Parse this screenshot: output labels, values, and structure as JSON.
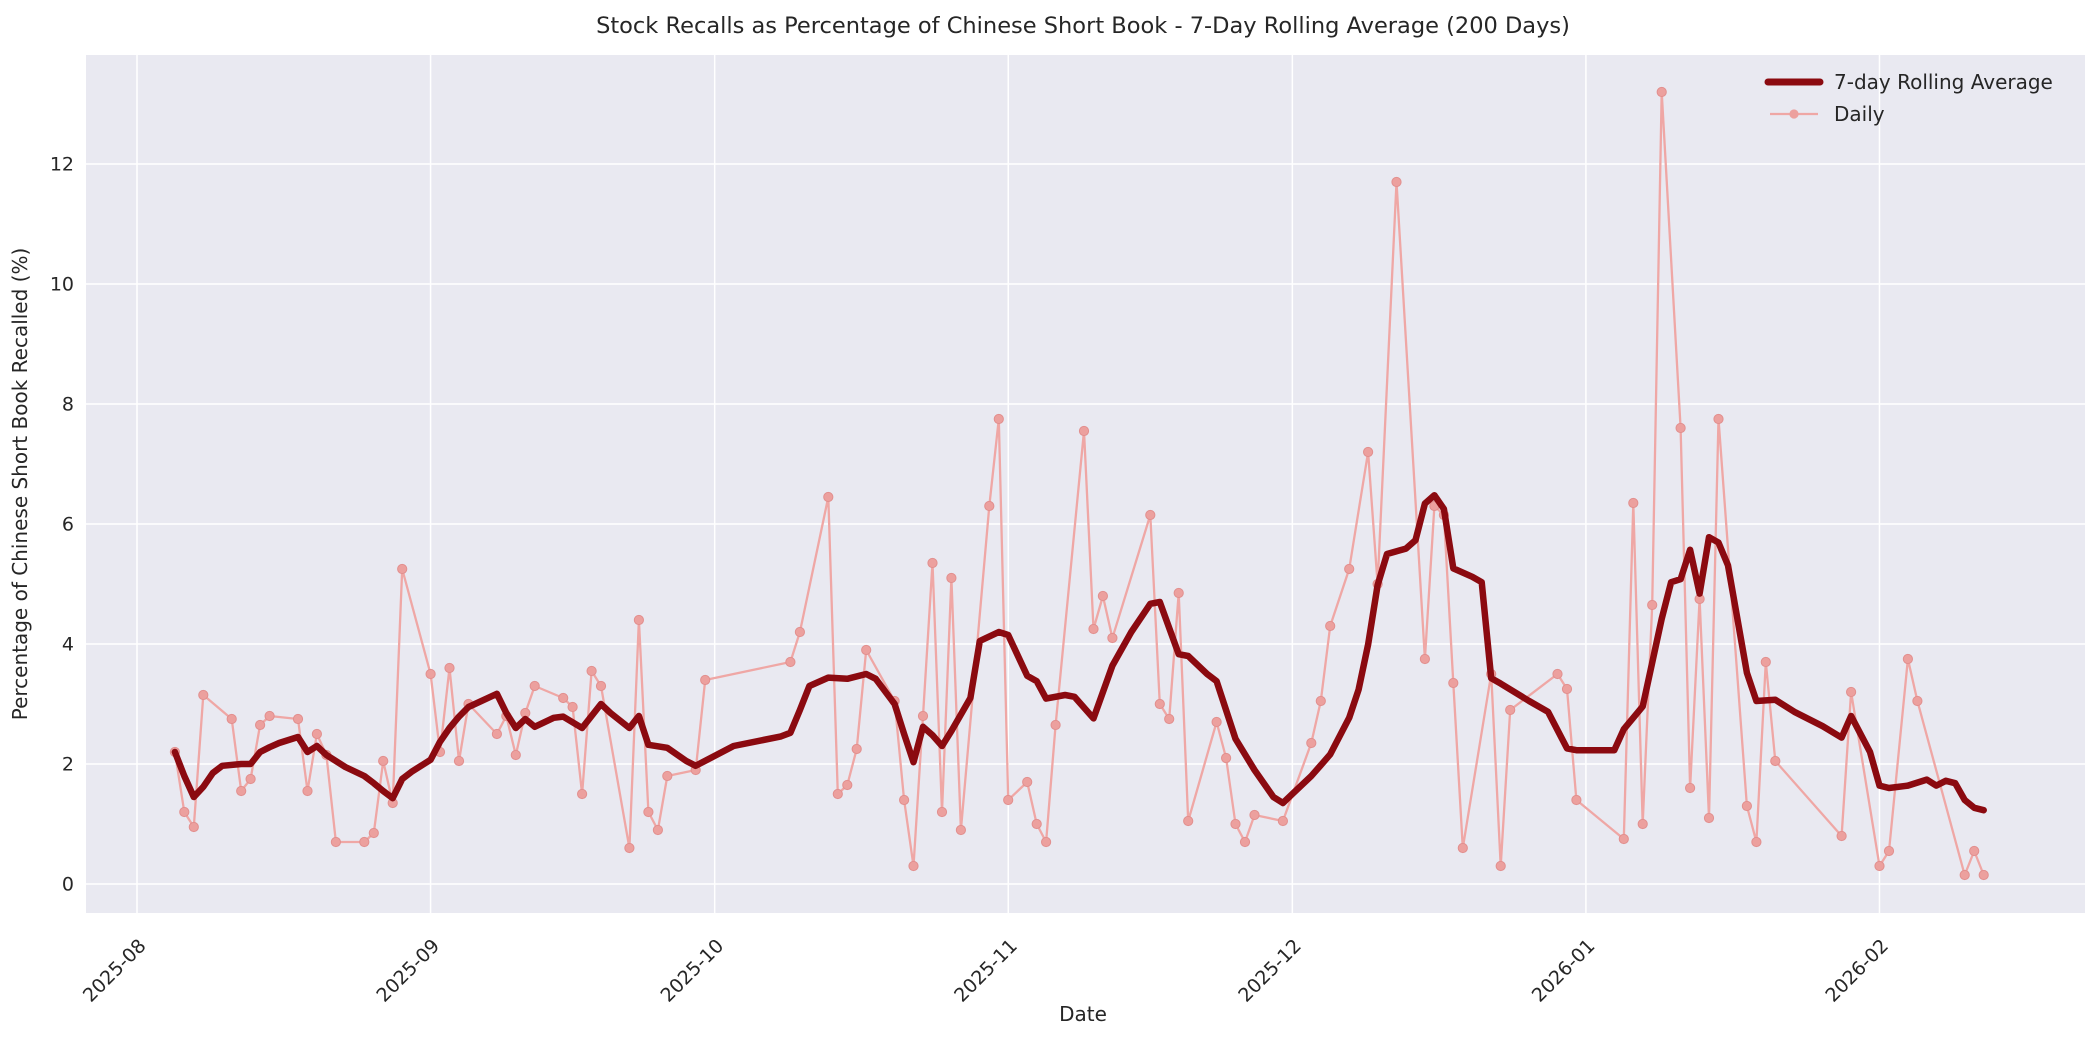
{
  "title": "Stock Recalls as Percentage of Chinese Short Book - 7-Day Rolling Average (200 Days)",
  "axes": {
    "xlabel": "Date",
    "ylabel": "Percentage of Chinese Short Book Recalled (%)"
  },
  "legend": {
    "position": "upper right",
    "items": [
      {
        "label": "7-day Rolling Average",
        "swatch": "thick-line"
      },
      {
        "label": "Daily",
        "swatch": "thin-line-with-marker"
      }
    ]
  },
  "colors": {
    "rolling": "#8b0a10",
    "daily": "#efa7a5",
    "daily_marker": "#eca09e",
    "daily_marker_edge": "#e28f8e",
    "plot_bg": "#e9e9f1",
    "grid": "#ffffff",
    "fig_bg": "#ffffff",
    "text": "#262626"
  },
  "chart_data": {
    "type": "line",
    "title": "Stock Recalls as Percentage of Chinese Short Book - 7-Day Rolling Average (200 Days)",
    "xlabel": "Date",
    "ylabel": "Percentage of Chinese Short Book Recalled (%)",
    "grid": true,
    "legend_position": "upper right",
    "ylim": [
      -0.73,
      13.98
    ],
    "xlim": [
      "2025-07-26",
      "2026-02-23"
    ],
    "y_ticks": [
      0,
      2,
      4,
      6,
      8,
      10,
      12
    ],
    "x_ticks": [
      {
        "label": "2025-08",
        "date": "2025-08-01"
      },
      {
        "label": "2025-09",
        "date": "2025-09-01"
      },
      {
        "label": "2025-10",
        "date": "2025-10-01"
      },
      {
        "label": "2025-11",
        "date": "2025-11-01"
      },
      {
        "label": "2025-12",
        "date": "2025-12-01"
      },
      {
        "label": "2026-01",
        "date": "2026-01-01"
      },
      {
        "label": "2026-02",
        "date": "2026-02-01"
      }
    ],
    "series": [
      {
        "name": "Daily",
        "style": "thin",
        "markers": true,
        "points": [
          [
            "2025-08-05",
            2.2
          ],
          [
            "2025-08-06",
            1.2
          ],
          [
            "2025-08-07",
            0.95
          ],
          [
            "2025-08-08",
            3.15
          ],
          [
            "2025-08-11",
            2.75
          ],
          [
            "2025-08-12",
            1.55
          ],
          [
            "2025-08-13",
            1.75
          ],
          [
            "2025-08-14",
            2.65
          ],
          [
            "2025-08-15",
            2.8
          ],
          [
            "2025-08-18",
            2.75
          ],
          [
            "2025-08-19",
            1.55
          ],
          [
            "2025-08-20",
            2.5
          ],
          [
            "2025-08-21",
            2.15
          ],
          [
            "2025-08-22",
            0.7
          ],
          [
            "2025-08-25",
            0.7
          ],
          [
            "2025-08-26",
            0.85
          ],
          [
            "2025-08-27",
            2.05
          ],
          [
            "2025-08-28",
            1.35
          ],
          [
            "2025-08-29",
            5.25
          ],
          [
            "2025-09-01",
            3.5
          ],
          [
            "2025-09-02",
            2.2
          ],
          [
            "2025-09-03",
            3.6
          ],
          [
            "2025-09-04",
            2.05
          ],
          [
            "2025-09-05",
            3.0
          ],
          [
            "2025-09-08",
            2.5
          ],
          [
            "2025-09-09",
            2.8
          ],
          [
            "2025-09-10",
            2.15
          ],
          [
            "2025-09-11",
            2.85
          ],
          [
            "2025-09-12",
            3.3
          ],
          [
            "2025-09-15",
            3.1
          ],
          [
            "2025-09-16",
            2.95
          ],
          [
            "2025-09-17",
            1.5
          ],
          [
            "2025-09-18",
            3.55
          ],
          [
            "2025-09-19",
            3.3
          ],
          [
            "2025-09-22",
            0.6
          ],
          [
            "2025-09-23",
            4.4
          ],
          [
            "2025-09-24",
            1.2
          ],
          [
            "2025-09-25",
            0.9
          ],
          [
            "2025-09-26",
            1.8
          ],
          [
            "2025-09-29",
            1.9
          ],
          [
            "2025-09-30",
            3.4
          ],
          [
            "2025-10-09",
            3.7
          ],
          [
            "2025-10-10",
            4.2
          ],
          [
            "2025-10-13",
            6.45
          ],
          [
            "2025-10-14",
            1.5
          ],
          [
            "2025-10-15",
            1.65
          ],
          [
            "2025-10-16",
            2.25
          ],
          [
            "2025-10-17",
            3.9
          ],
          [
            "2025-10-20",
            3.05
          ],
          [
            "2025-10-21",
            1.4
          ],
          [
            "2025-10-22",
            0.3
          ],
          [
            "2025-10-23",
            2.8
          ],
          [
            "2025-10-24",
            5.35
          ],
          [
            "2025-10-25",
            1.2
          ],
          [
            "2025-10-26",
            5.1
          ],
          [
            "2025-10-27",
            0.9
          ],
          [
            "2025-10-30",
            6.3
          ],
          [
            "2025-10-31",
            7.75
          ],
          [
            "2025-11-01",
            1.4
          ],
          [
            "2025-11-03",
            1.7
          ],
          [
            "2025-11-04",
            1.0
          ],
          [
            "2025-11-05",
            0.7
          ],
          [
            "2025-11-06",
            2.65
          ],
          [
            "2025-11-09",
            7.55
          ],
          [
            "2025-11-10",
            4.25
          ],
          [
            "2025-11-11",
            4.8
          ],
          [
            "2025-11-12",
            4.1
          ],
          [
            "2025-11-16",
            6.15
          ],
          [
            "2025-11-17",
            3.0
          ],
          [
            "2025-11-18",
            2.75
          ],
          [
            "2025-11-19",
            4.85
          ],
          [
            "2025-11-20",
            1.05
          ],
          [
            "2025-11-23",
            2.7
          ],
          [
            "2025-11-24",
            2.1
          ],
          [
            "2025-11-25",
            1.0
          ],
          [
            "2025-11-26",
            0.7
          ],
          [
            "2025-11-27",
            1.15
          ],
          [
            "2025-11-30",
            1.05
          ],
          [
            "2025-12-03",
            2.35
          ],
          [
            "2025-12-04",
            3.05
          ],
          [
            "2025-12-05",
            4.3
          ],
          [
            "2025-12-07",
            5.25
          ],
          [
            "2025-12-09",
            7.2
          ],
          [
            "2025-12-10",
            5.0
          ],
          [
            "2025-12-12",
            11.7
          ],
          [
            "2025-12-15",
            3.75
          ],
          [
            "2025-12-16",
            6.3
          ],
          [
            "2025-12-17",
            6.15
          ],
          [
            "2025-12-18",
            3.35
          ],
          [
            "2025-12-19",
            0.6
          ],
          [
            "2025-12-22",
            3.5
          ],
          [
            "2025-12-23",
            0.3
          ],
          [
            "2025-12-24",
            2.9
          ],
          [
            "2025-12-29",
            3.5
          ],
          [
            "2025-12-30",
            3.25
          ],
          [
            "2025-12-31",
            1.4
          ],
          [
            "2026-01-05",
            0.75
          ],
          [
            "2026-01-06",
            6.35
          ],
          [
            "2026-01-07",
            1.0
          ],
          [
            "2026-01-08",
            4.65
          ],
          [
            "2026-01-09",
            13.2
          ],
          [
            "2026-01-11",
            7.6
          ],
          [
            "2026-01-12",
            1.6
          ],
          [
            "2026-01-13",
            4.75
          ],
          [
            "2026-01-14",
            1.1
          ],
          [
            "2026-01-15",
            7.75
          ],
          [
            "2026-01-18",
            1.3
          ],
          [
            "2026-01-19",
            0.7
          ],
          [
            "2026-01-20",
            3.7
          ],
          [
            "2026-01-21",
            2.05
          ],
          [
            "2026-01-28",
            0.8
          ],
          [
            "2026-01-29",
            3.2
          ],
          [
            "2026-02-01",
            0.3
          ],
          [
            "2026-02-02",
            0.55
          ],
          [
            "2026-02-04",
            3.75
          ],
          [
            "2026-02-05",
            3.05
          ],
          [
            "2026-02-10",
            0.15
          ],
          [
            "2026-02-11",
            0.55
          ],
          [
            "2026-02-12",
            0.15
          ]
        ]
      },
      {
        "name": "7-day Rolling Average",
        "style": "thick",
        "markers": false,
        "points": [
          [
            "2025-08-05",
            2.2
          ],
          [
            "2025-08-06",
            1.8
          ],
          [
            "2025-08-07",
            1.45
          ],
          [
            "2025-08-08",
            1.62
          ],
          [
            "2025-08-09",
            1.85
          ],
          [
            "2025-08-10",
            1.97
          ],
          [
            "2025-08-12",
            2.0
          ],
          [
            "2025-08-13",
            2.0
          ],
          [
            "2025-08-14",
            2.2
          ],
          [
            "2025-08-15",
            2.28
          ],
          [
            "2025-08-16",
            2.35
          ],
          [
            "2025-08-18",
            2.45
          ],
          [
            "2025-08-19",
            2.2
          ],
          [
            "2025-08-20",
            2.3
          ],
          [
            "2025-08-21",
            2.15
          ],
          [
            "2025-08-23",
            1.95
          ],
          [
            "2025-08-25",
            1.8
          ],
          [
            "2025-08-26",
            1.68
          ],
          [
            "2025-08-27",
            1.55
          ],
          [
            "2025-08-28",
            1.43
          ],
          [
            "2025-08-29",
            1.75
          ],
          [
            "2025-08-30",
            1.87
          ],
          [
            "2025-08-31",
            1.97
          ],
          [
            "2025-09-01",
            2.07
          ],
          [
            "2025-09-02",
            2.37
          ],
          [
            "2025-09-03",
            2.6
          ],
          [
            "2025-09-04",
            2.79
          ],
          [
            "2025-09-05",
            2.95
          ],
          [
            "2025-09-08",
            3.17
          ],
          [
            "2025-09-09",
            2.85
          ],
          [
            "2025-09-10",
            2.6
          ],
          [
            "2025-09-11",
            2.75
          ],
          [
            "2025-09-12",
            2.62
          ],
          [
            "2025-09-14",
            2.77
          ],
          [
            "2025-09-15",
            2.79
          ],
          [
            "2025-09-17",
            2.6
          ],
          [
            "2025-09-19",
            3.0
          ],
          [
            "2025-09-20",
            2.85
          ],
          [
            "2025-09-22",
            2.6
          ],
          [
            "2025-09-23",
            2.8
          ],
          [
            "2025-09-24",
            2.32
          ],
          [
            "2025-09-26",
            2.27
          ],
          [
            "2025-09-28",
            2.05
          ],
          [
            "2025-09-29",
            1.97
          ],
          [
            "2025-10-03",
            2.3
          ],
          [
            "2025-10-08",
            2.46
          ],
          [
            "2025-10-09",
            2.52
          ],
          [
            "2025-10-10",
            2.9
          ],
          [
            "2025-10-11",
            3.3
          ],
          [
            "2025-10-13",
            3.44
          ],
          [
            "2025-10-15",
            3.42
          ],
          [
            "2025-10-17",
            3.5
          ],
          [
            "2025-10-18",
            3.42
          ],
          [
            "2025-10-20",
            3.0
          ],
          [
            "2025-10-21",
            2.5
          ],
          [
            "2025-10-22",
            2.03
          ],
          [
            "2025-10-23",
            2.62
          ],
          [
            "2025-10-24",
            2.48
          ],
          [
            "2025-10-25",
            2.3
          ],
          [
            "2025-10-26",
            2.55
          ],
          [
            "2025-10-28",
            3.1
          ],
          [
            "2025-10-29",
            4.05
          ],
          [
            "2025-10-31",
            4.2
          ],
          [
            "2025-11-01",
            4.15
          ],
          [
            "2025-11-03",
            3.47
          ],
          [
            "2025-11-04",
            3.38
          ],
          [
            "2025-11-05",
            3.09
          ],
          [
            "2025-11-07",
            3.15
          ],
          [
            "2025-11-08",
            3.12
          ],
          [
            "2025-11-10",
            2.76
          ],
          [
            "2025-11-12",
            3.64
          ],
          [
            "2025-11-14",
            4.2
          ],
          [
            "2025-11-16",
            4.67
          ],
          [
            "2025-11-17",
            4.7
          ],
          [
            "2025-11-19",
            3.83
          ],
          [
            "2025-11-20",
            3.8
          ],
          [
            "2025-11-22",
            3.5
          ],
          [
            "2025-11-23",
            3.38
          ],
          [
            "2025-11-25",
            2.42
          ],
          [
            "2025-11-27",
            1.9
          ],
          [
            "2025-11-29",
            1.45
          ],
          [
            "2025-11-30",
            1.35
          ],
          [
            "2025-12-01",
            1.5
          ],
          [
            "2025-12-03",
            1.8
          ],
          [
            "2025-12-04",
            1.98
          ],
          [
            "2025-12-05",
            2.16
          ],
          [
            "2025-12-07",
            2.77
          ],
          [
            "2025-12-08",
            3.24
          ],
          [
            "2025-12-09",
            3.99
          ],
          [
            "2025-12-10",
            4.98
          ],
          [
            "2025-12-11",
            5.5
          ],
          [
            "2025-12-13",
            5.59
          ],
          [
            "2025-12-14",
            5.73
          ],
          [
            "2025-12-15",
            6.34
          ],
          [
            "2025-12-16",
            6.48
          ],
          [
            "2025-12-17",
            6.25
          ],
          [
            "2025-12-18",
            5.26
          ],
          [
            "2025-12-20",
            5.12
          ],
          [
            "2025-12-21",
            5.03
          ],
          [
            "2025-12-22",
            3.43
          ],
          [
            "2025-12-23",
            3.34
          ],
          [
            "2025-12-26",
            3.05
          ],
          [
            "2025-12-28",
            2.87
          ],
          [
            "2025-12-30",
            2.26
          ],
          [
            "2025-12-31",
            2.23
          ],
          [
            "2026-01-04",
            2.23
          ],
          [
            "2026-01-05",
            2.58
          ],
          [
            "2026-01-07",
            2.96
          ],
          [
            "2026-01-09",
            4.42
          ],
          [
            "2026-01-10",
            5.03
          ],
          [
            "2026-01-11",
            5.08
          ],
          [
            "2026-01-12",
            5.57
          ],
          [
            "2026-01-13",
            4.84
          ],
          [
            "2026-01-14",
            5.78
          ],
          [
            "2026-01-15",
            5.69
          ],
          [
            "2026-01-16",
            5.31
          ],
          [
            "2026-01-18",
            3.52
          ],
          [
            "2026-01-19",
            3.05
          ],
          [
            "2026-01-21",
            3.07
          ],
          [
            "2026-01-23",
            2.87
          ],
          [
            "2026-01-26",
            2.63
          ],
          [
            "2026-01-28",
            2.44
          ],
          [
            "2026-01-29",
            2.8
          ],
          [
            "2026-01-31",
            2.2
          ],
          [
            "2026-02-01",
            1.64
          ],
          [
            "2026-02-02",
            1.6
          ],
          [
            "2026-02-04",
            1.64
          ],
          [
            "2026-02-06",
            1.74
          ],
          [
            "2026-02-07",
            1.64
          ],
          [
            "2026-02-08",
            1.72
          ],
          [
            "2026-02-09",
            1.68
          ],
          [
            "2026-02-10",
            1.4
          ],
          [
            "2026-02-11",
            1.27
          ],
          [
            "2026-02-12",
            1.23
          ]
        ]
      }
    ]
  }
}
